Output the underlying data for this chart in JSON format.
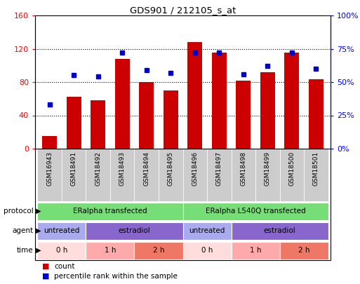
{
  "title": "GDS901 / 212105_s_at",
  "samples": [
    "GSM16943",
    "GSM18491",
    "GSM18492",
    "GSM18493",
    "GSM18494",
    "GSM18495",
    "GSM18496",
    "GSM18497",
    "GSM18498",
    "GSM18499",
    "GSM18500",
    "GSM18501"
  ],
  "counts": [
    15,
    62,
    58,
    108,
    80,
    70,
    128,
    115,
    82,
    92,
    115,
    83
  ],
  "percentile": [
    33,
    55,
    54,
    72,
    59,
    57,
    72,
    72,
    56,
    62,
    72,
    60
  ],
  "bar_color": "#cc0000",
  "dot_color": "#0000cc",
  "left_ylim": [
    0,
    160
  ],
  "left_yticks": [
    0,
    40,
    80,
    120,
    160
  ],
  "right_ylim": [
    0,
    100
  ],
  "right_yticks": [
    0,
    25,
    50,
    75,
    100
  ],
  "right_yticklabels": [
    "0%",
    "25%",
    "50%",
    "75%",
    "100%"
  ],
  "protocol_labels": [
    "ERalpha transfected",
    "ERalpha L540Q transfected"
  ],
  "protocol_color": "#77dd77",
  "agent_color_untreated": "#aaaaee",
  "agent_color_estradiol": "#8866cc",
  "time_color_0h": "#ffdddd",
  "time_color_1h": "#ffaaaa",
  "time_color_2h": "#ee7766",
  "legend_count_label": "count",
  "legend_pct_label": "percentile rank within the sample",
  "bg_color": "#ffffff",
  "sample_bg": "#cccccc",
  "grid_dotted_color": "#000000"
}
